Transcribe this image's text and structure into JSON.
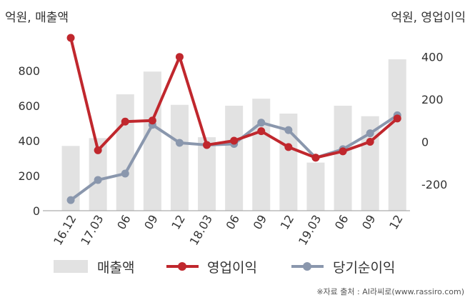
{
  "chart_data": {
    "type": "bar+line",
    "left_unit_label": "억원, 매출액",
    "right_unit_label": "억원, 영업이익",
    "categories": [
      "16.12",
      "17.03",
      "06",
      "09",
      "12",
      "18.03",
      "06",
      "09",
      "12",
      "19.03",
      "06",
      "09",
      "12"
    ],
    "y_left": {
      "min": 0,
      "max": 1000,
      "ticks": [
        0,
        200,
        400,
        600,
        800
      ]
    },
    "y_right": {
      "min": -325,
      "max": 500,
      "ticks": [
        -200,
        0,
        200,
        400
      ]
    },
    "series": [
      {
        "name": "매출액",
        "type": "bar",
        "axis": "left",
        "color": "#e2e2e2",
        "values": [
          370,
          415,
          665,
          795,
          605,
          420,
          600,
          640,
          555,
          275,
          600,
          540,
          865
        ]
      },
      {
        "name": "영업이익",
        "type": "line",
        "axis": "right",
        "color": "#c0272d",
        "values": [
          490,
          -40,
          95,
          100,
          400,
          -15,
          5,
          50,
          -25,
          -75,
          -45,
          0,
          110
        ]
      },
      {
        "name": "당기순이익",
        "type": "line",
        "axis": "right",
        "color": "#8a97ad",
        "values": [
          -275,
          -180,
          -150,
          80,
          -5,
          -15,
          -10,
          90,
          55,
          -75,
          -35,
          40,
          125
        ]
      }
    ],
    "legend_position": "bottom"
  },
  "footer": {
    "source": "※자료 출처 : AI라씨로(www.rassiro.com)"
  }
}
